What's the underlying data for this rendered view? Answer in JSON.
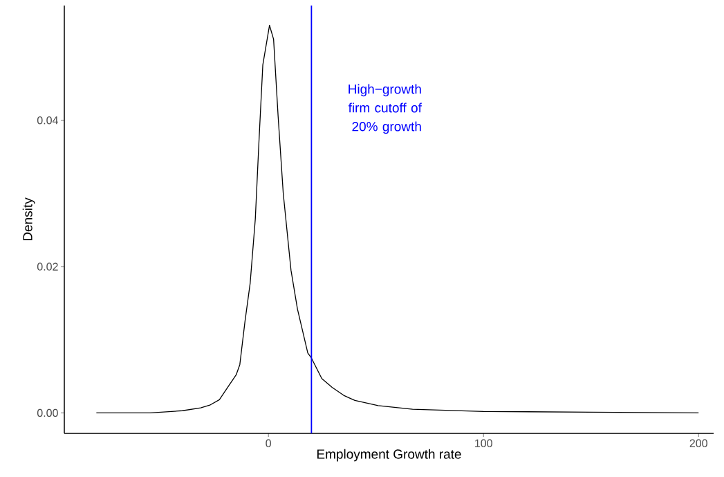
{
  "chart_data": {
    "type": "line",
    "xlabel": "Employment Growth rate",
    "ylabel": "Density",
    "x": [
      -80,
      -55,
      -40,
      -31.5,
      -27,
      -22.8,
      -18,
      -15,
      -13.3,
      -10.9,
      -8.5,
      -6.1,
      -4.4,
      -2.6,
      0.5,
      2.4,
      4.5,
      6.9,
      10.5,
      13.5,
      18.3,
      20,
      24.8,
      29.6,
      35,
      40.2,
      51,
      67,
      100,
      150,
      200
    ],
    "series": [
      {
        "color": "#000000",
        "values": [
          0,
          0,
          0.0003,
          0.0007,
          0.0011,
          0.0018,
          0.0039,
          0.0052,
          0.0066,
          0.0125,
          0.0177,
          0.0265,
          0.0371,
          0.0476,
          0.053,
          0.0511,
          0.0406,
          0.03,
          0.0195,
          0.0142,
          0.0082,
          0.0075,
          0.0047,
          0.0035,
          0.0024,
          0.0017,
          0.001,
          0.0005,
          0.0002,
          0.0001,
          0
        ]
      }
    ],
    "xlim": [
      -94.9,
      207
    ],
    "ylim": [
      -0.0028,
      0.0557
    ],
    "xticks": [
      0,
      100,
      200
    ],
    "yticks": [
      {
        "value": 0,
        "label": "0.00"
      },
      {
        "value": 0.02,
        "label": "0.02"
      },
      {
        "value": 0.04,
        "label": "0.04"
      }
    ],
    "ref_lines": [
      {
        "axis": "x",
        "value": 20,
        "label": "High−growth firm cutoff of 20% growth",
        "color": "#0000ff"
      }
    ]
  }
}
